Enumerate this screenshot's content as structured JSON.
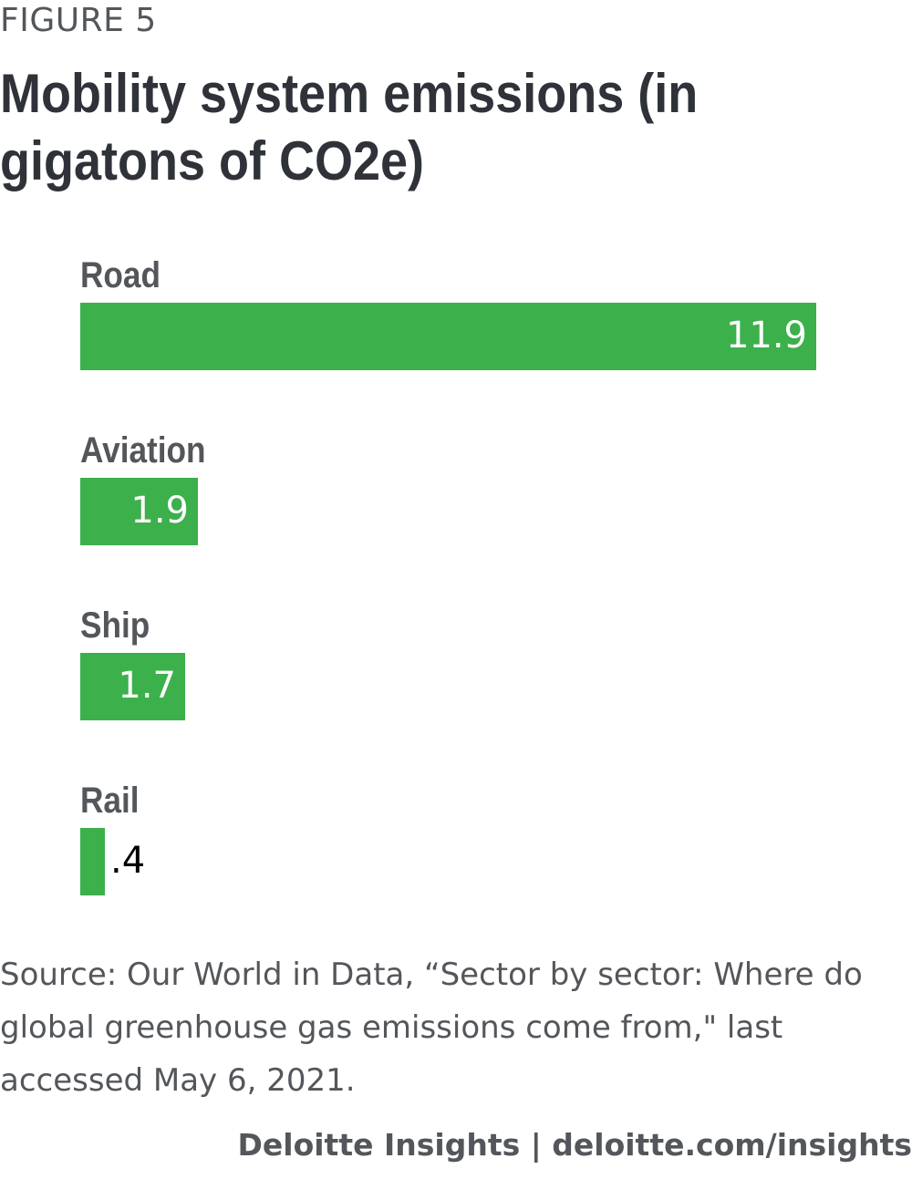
{
  "figure_label": "FIGURE 5",
  "footer": "Deloitte Insights | deloitte.com/insights",
  "source": "Source: Our World in Data, “Sector by sector: Where do global greenhouse gas emissions come from,\" last accessed May 6, 2021.",
  "chart_data": {
    "type": "bar",
    "orientation": "horizontal",
    "title": "Mobility system emissions (in gigatons of CO2e)",
    "categories": [
      "Road",
      "Aviation",
      "Ship",
      "Rail"
    ],
    "values": [
      11.9,
      1.9,
      1.7,
      0.4
    ],
    "value_labels": [
      "11.9",
      "1.9",
      "1.7",
      ".4"
    ],
    "xlim": [
      0,
      11.9
    ],
    "grid": false,
    "legend": "none",
    "bar_color": "#3cb04b"
  }
}
